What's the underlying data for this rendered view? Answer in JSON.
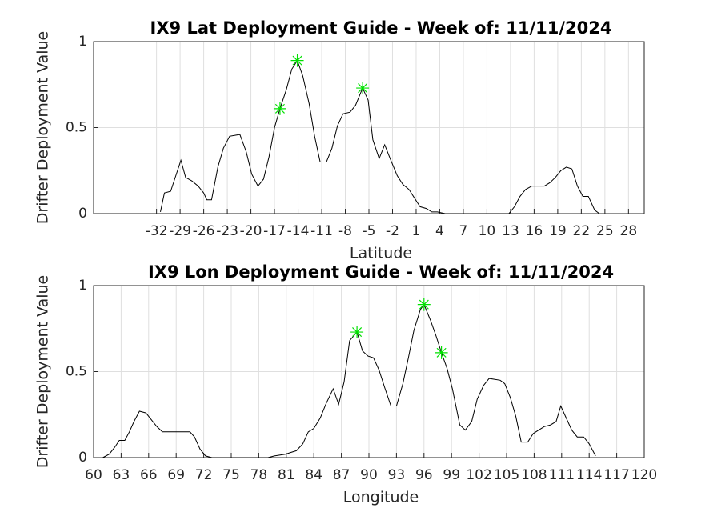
{
  "chart_data": [
    {
      "type": "line",
      "title": "IX9 Lat Deployment Guide - Week of: 11/11/2024",
      "xlabel": "Latitude",
      "ylabel": "Drifter Deployment Value",
      "xlim": [
        -40,
        30
      ],
      "xticks": [
        -32,
        -29,
        -26,
        -23,
        -20,
        -17,
        -14,
        -11,
        -8,
        -5,
        -2,
        1,
        4,
        7,
        10,
        13,
        16,
        19,
        22,
        25,
        28
      ],
      "ylim": [
        0,
        1
      ],
      "yticks": [
        0,
        0.5,
        1
      ],
      "grid": true,
      "color": "#000000",
      "x": [
        -31.5,
        -31,
        -30.2,
        -28.9,
        -28.3,
        -27.5,
        -26.7,
        -26,
        -25.6,
        -25,
        -24.2,
        -23.5,
        -22.7,
        -21.4,
        -20.6,
        -19.9,
        -19.1,
        -18.4,
        -17.7,
        -17,
        -16.3,
        -15.5,
        -14.8,
        -14.1,
        -13.4,
        -12.6,
        -11.9,
        -11.2,
        -10.4,
        -9.7,
        -9,
        -8.3,
        -7.4,
        -6.7,
        -5.8,
        -5.1,
        -4.5,
        -3.7,
        -3,
        -2.3,
        -1.4,
        -0.7,
        0.1,
        0.8,
        1.5,
        2.3,
        3,
        3.7,
        4.7,
        12.8,
        13.5,
        14.2,
        14.9,
        15.7,
        17.3,
        18,
        18.7,
        19.4,
        20.1,
        20.8,
        21.5,
        22.2,
        22.9,
        23.7,
        24.3
      ],
      "values": [
        0.01,
        0.12,
        0.13,
        0.31,
        0.21,
        0.19,
        0.16,
        0.12,
        0.08,
        0.08,
        0.27,
        0.38,
        0.45,
        0.46,
        0.36,
        0.23,
        0.16,
        0.2,
        0.33,
        0.5,
        0.61,
        0.72,
        0.84,
        0.89,
        0.8,
        0.64,
        0.45,
        0.3,
        0.3,
        0.38,
        0.51,
        0.58,
        0.59,
        0.63,
        0.73,
        0.66,
        0.43,
        0.32,
        0.4,
        0.32,
        0.22,
        0.17,
        0.14,
        0.09,
        0.04,
        0.03,
        0.01,
        0.01,
        0,
        0,
        0.04,
        0.1,
        0.14,
        0.16,
        0.16,
        0.18,
        0.21,
        0.25,
        0.27,
        0.26,
        0.16,
        0.1,
        0.1,
        0.02,
        0
      ],
      "markers": {
        "color": "#00e000",
        "x": [
          -16.3,
          -14.1,
          -5.8
        ],
        "values": [
          0.61,
          0.89,
          0.73
        ]
      }
    },
    {
      "type": "line",
      "title": "IX9 Lon Deployment Guide - Week of: 11/11/2024",
      "xlabel": "Longitude",
      "ylabel": "Drifter Deployment Value",
      "xlim": [
        60,
        120
      ],
      "xticks": [
        60,
        63,
        66,
        69,
        72,
        75,
        78,
        81,
        84,
        87,
        90,
        93,
        96,
        99,
        102,
        105,
        108,
        111,
        114,
        117,
        120
      ],
      "ylim": [
        0,
        1
      ],
      "yticks": [
        0,
        0.5,
        1
      ],
      "grid": true,
      "color": "#000000",
      "x": [
        61,
        61.7,
        62.3,
        62.8,
        63.4,
        63.9,
        64.4,
        65,
        65.7,
        66.3,
        66.9,
        67.5,
        68.1,
        69.9,
        70.5,
        71,
        71.6,
        72.2,
        72.9,
        79,
        79.7,
        80.9,
        81.5,
        82.1,
        82.8,
        83.4,
        84,
        84.7,
        85.3,
        86.1,
        86.7,
        87.3,
        87.9,
        88.7,
        89.3,
        89.9,
        90.5,
        91.1,
        91.7,
        92.4,
        93,
        93.7,
        94.3,
        94.9,
        95.6,
        96,
        96.7,
        97.3,
        97.9,
        98.5,
        99.1,
        99.9,
        100.5,
        101.2,
        101.8,
        102.5,
        103.1,
        104.3,
        104.8,
        105.4,
        106,
        106.6,
        107.3,
        107.9,
        108.5,
        109.1,
        109.8,
        110.4,
        110.9,
        111.5,
        112.1,
        112.7,
        113.4,
        114,
        114.7
      ],
      "values": [
        0,
        0.02,
        0.06,
        0.1,
        0.1,
        0.15,
        0.21,
        0.27,
        0.26,
        0.22,
        0.18,
        0.15,
        0.15,
        0.15,
        0.15,
        0.12,
        0.05,
        0.01,
        0,
        0,
        0.01,
        0.02,
        0.03,
        0.04,
        0.08,
        0.15,
        0.17,
        0.23,
        0.31,
        0.4,
        0.31,
        0.44,
        0.68,
        0.73,
        0.62,
        0.59,
        0.58,
        0.51,
        0.41,
        0.3,
        0.3,
        0.43,
        0.58,
        0.74,
        0.86,
        0.89,
        0.8,
        0.71,
        0.61,
        0.52,
        0.4,
        0.19,
        0.16,
        0.21,
        0.34,
        0.42,
        0.46,
        0.45,
        0.43,
        0.35,
        0.24,
        0.09,
        0.09,
        0.14,
        0.16,
        0.18,
        0.19,
        0.21,
        0.3,
        0.23,
        0.16,
        0.12,
        0.12,
        0.08,
        0.01
      ],
      "markers": {
        "color": "#00e000",
        "x": [
          88.7,
          96,
          97.9
        ],
        "values": [
          0.73,
          0.89,
          0.61
        ]
      }
    }
  ]
}
